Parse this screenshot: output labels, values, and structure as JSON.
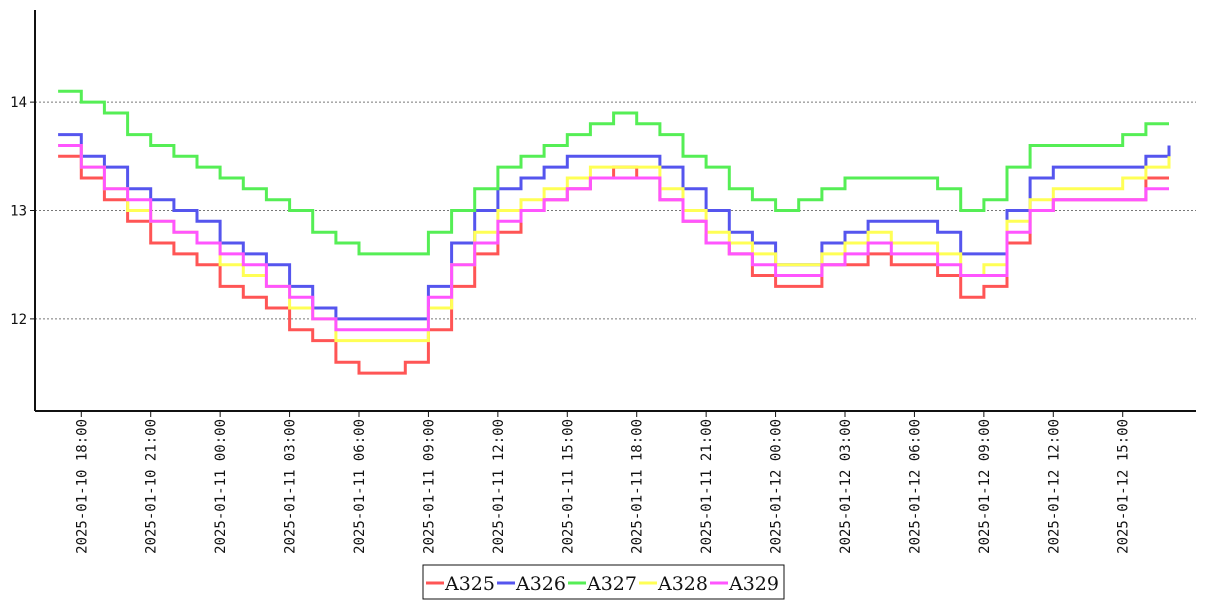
{
  "chart_data": {
    "type": "line",
    "title": "",
    "xlabel": "",
    "ylabel": "",
    "ylim": [
      11.15,
      14.85
    ],
    "xlim": [
      "2025-01-10 16:00",
      "2025-01-12 18:10"
    ],
    "grid": {
      "y": true,
      "x": false,
      "style": "dotted"
    },
    "legend_position": "bottom-center",
    "y_ticks": [
      12,
      13,
      14
    ],
    "y_tick_labels": [
      "12",
      "13",
      "14"
    ],
    "x_ticks": [
      "2025-01-10 18:00",
      "2025-01-10 21:00",
      "2025-01-11 00:00",
      "2025-01-11 03:00",
      "2025-01-11 06:00",
      "2025-01-11 09:00",
      "2025-01-11 12:00",
      "2025-01-11 15:00",
      "2025-01-11 18:00",
      "2025-01-11 21:00",
      "2025-01-12 00:00",
      "2025-01-12 03:00",
      "2025-01-12 06:00",
      "2025-01-12 09:00",
      "2025-01-12 12:00",
      "2025-01-12 15:00"
    ],
    "x_tick_labels": [
      "2025-01-10  18:00",
      "2025-01-10  21:00",
      "2025-01-11  00:00",
      "2025-01-11  03:00",
      "2025-01-11  06:00",
      "2025-01-11  09:00",
      "2025-01-11  12:00",
      "2025-01-11  15:00",
      "2025-01-11  18:00",
      "2025-01-11  21:00",
      "2025-01-12  00:00",
      "2025-01-12  03:00",
      "2025-01-12  06:00",
      "2025-01-12  09:00",
      "2025-01-12  12:00",
      "2025-01-12  15:00"
    ],
    "series": [
      {
        "name": "A325",
        "color": "#ff5555",
        "x": [
          "2025-01-10 17:00",
          "2025-01-10 18:00",
          "2025-01-10 19:00",
          "2025-01-10 20:00",
          "2025-01-10 21:00",
          "2025-01-10 22:00",
          "2025-01-10 23:00",
          "2025-01-11 00:00",
          "2025-01-11 01:00",
          "2025-01-11 02:00",
          "2025-01-11 03:00",
          "2025-01-11 04:00",
          "2025-01-11 05:00",
          "2025-01-11 06:00",
          "2025-01-11 07:00",
          "2025-01-11 08:00",
          "2025-01-11 09:00",
          "2025-01-11 10:00",
          "2025-01-11 11:00",
          "2025-01-11 12:00",
          "2025-01-11 13:00",
          "2025-01-11 14:00",
          "2025-01-11 15:00",
          "2025-01-11 16:00",
          "2025-01-11 17:00",
          "2025-01-11 18:00",
          "2025-01-11 19:00",
          "2025-01-11 20:00",
          "2025-01-11 21:00",
          "2025-01-11 22:00",
          "2025-01-11 23:00",
          "2025-01-12 00:00",
          "2025-01-12 01:00",
          "2025-01-12 02:00",
          "2025-01-12 03:00",
          "2025-01-12 04:00",
          "2025-01-12 05:00",
          "2025-01-12 06:00",
          "2025-01-12 07:00",
          "2025-01-12 08:00",
          "2025-01-12 09:00",
          "2025-01-12 10:00",
          "2025-01-12 11:00",
          "2025-01-12 12:00",
          "2025-01-12 13:00",
          "2025-01-12 14:00",
          "2025-01-12 15:00",
          "2025-01-12 16:00",
          "2025-01-12 17:00"
        ],
        "values": [
          13.5,
          13.3,
          13.1,
          12.9,
          12.7,
          12.6,
          12.5,
          12.3,
          12.2,
          12.1,
          11.9,
          11.8,
          11.6,
          11.5,
          11.5,
          11.6,
          11.9,
          12.3,
          12.6,
          12.8,
          13.0,
          13.1,
          13.2,
          13.3,
          13.4,
          13.3,
          13.1,
          12.9,
          12.7,
          12.6,
          12.4,
          12.3,
          12.3,
          12.5,
          12.5,
          12.6,
          12.5,
          12.5,
          12.4,
          12.2,
          12.3,
          12.7,
          13.0,
          13.1,
          13.1,
          13.1,
          13.1,
          13.3,
          13.3
        ]
      },
      {
        "name": "A326",
        "color": "#5555ee",
        "x": [
          "2025-01-10 17:00",
          "2025-01-10 18:00",
          "2025-01-10 19:00",
          "2025-01-10 20:00",
          "2025-01-10 21:00",
          "2025-01-10 22:00",
          "2025-01-10 23:00",
          "2025-01-11 00:00",
          "2025-01-11 01:00",
          "2025-01-11 02:00",
          "2025-01-11 03:00",
          "2025-01-11 04:00",
          "2025-01-11 05:00",
          "2025-01-11 06:00",
          "2025-01-11 07:00",
          "2025-01-11 08:00",
          "2025-01-11 09:00",
          "2025-01-11 10:00",
          "2025-01-11 11:00",
          "2025-01-11 12:00",
          "2025-01-11 13:00",
          "2025-01-11 14:00",
          "2025-01-11 15:00",
          "2025-01-11 16:00",
          "2025-01-11 17:00",
          "2025-01-11 18:00",
          "2025-01-11 19:00",
          "2025-01-11 20:00",
          "2025-01-11 21:00",
          "2025-01-11 22:00",
          "2025-01-11 23:00",
          "2025-01-12 00:00",
          "2025-01-12 01:00",
          "2025-01-12 02:00",
          "2025-01-12 03:00",
          "2025-01-12 04:00",
          "2025-01-12 05:00",
          "2025-01-12 06:00",
          "2025-01-12 07:00",
          "2025-01-12 08:00",
          "2025-01-12 09:00",
          "2025-01-12 10:00",
          "2025-01-12 11:00",
          "2025-01-12 12:00",
          "2025-01-12 13:00",
          "2025-01-12 14:00",
          "2025-01-12 15:00",
          "2025-01-12 16:00",
          "2025-01-12 17:00"
        ],
        "values": [
          13.7,
          13.5,
          13.4,
          13.2,
          13.1,
          13.0,
          12.9,
          12.7,
          12.6,
          12.5,
          12.3,
          12.1,
          12.0,
          12.0,
          12.0,
          12.0,
          12.3,
          12.7,
          13.0,
          13.2,
          13.3,
          13.4,
          13.5,
          13.5,
          13.5,
          13.5,
          13.4,
          13.2,
          13.0,
          12.8,
          12.7,
          12.5,
          12.5,
          12.7,
          12.8,
          12.9,
          12.9,
          12.9,
          12.8,
          12.6,
          12.6,
          13.0,
          13.3,
          13.4,
          13.4,
          13.4,
          13.4,
          13.5,
          13.6
        ]
      },
      {
        "name": "A327",
        "color": "#55ee55",
        "x": [
          "2025-01-10 17:00",
          "2025-01-10 18:00",
          "2025-01-10 19:00",
          "2025-01-10 20:00",
          "2025-01-10 21:00",
          "2025-01-10 22:00",
          "2025-01-10 23:00",
          "2025-01-11 00:00",
          "2025-01-11 01:00",
          "2025-01-11 02:00",
          "2025-01-11 03:00",
          "2025-01-11 04:00",
          "2025-01-11 05:00",
          "2025-01-11 06:00",
          "2025-01-11 07:00",
          "2025-01-11 08:00",
          "2025-01-11 09:00",
          "2025-01-11 10:00",
          "2025-01-11 11:00",
          "2025-01-11 12:00",
          "2025-01-11 13:00",
          "2025-01-11 14:00",
          "2025-01-11 15:00",
          "2025-01-11 16:00",
          "2025-01-11 17:00",
          "2025-01-11 18:00",
          "2025-01-11 19:00",
          "2025-01-11 20:00",
          "2025-01-11 21:00",
          "2025-01-11 22:00",
          "2025-01-11 23:00",
          "2025-01-12 00:00",
          "2025-01-12 01:00",
          "2025-01-12 02:00",
          "2025-01-12 03:00",
          "2025-01-12 04:00",
          "2025-01-12 05:00",
          "2025-01-12 06:00",
          "2025-01-12 07:00",
          "2025-01-12 08:00",
          "2025-01-12 09:00",
          "2025-01-12 10:00",
          "2025-01-12 11:00",
          "2025-01-12 12:00",
          "2025-01-12 13:00",
          "2025-01-12 14:00",
          "2025-01-12 15:00",
          "2025-01-12 16:00",
          "2025-01-12 17:00"
        ],
        "values": [
          14.1,
          14.0,
          13.9,
          13.7,
          13.6,
          13.5,
          13.4,
          13.3,
          13.2,
          13.1,
          13.0,
          12.8,
          12.7,
          12.6,
          12.6,
          12.6,
          12.8,
          13.0,
          13.2,
          13.4,
          13.5,
          13.6,
          13.7,
          13.8,
          13.9,
          13.8,
          13.7,
          13.5,
          13.4,
          13.2,
          13.1,
          13.0,
          13.1,
          13.2,
          13.3,
          13.3,
          13.3,
          13.3,
          13.2,
          13.0,
          13.1,
          13.4,
          13.6,
          13.6,
          13.6,
          13.6,
          13.7,
          13.8,
          13.8
        ]
      },
      {
        "name": "A328",
        "color": "#ffff55",
        "x": [
          "2025-01-10 17:00",
          "2025-01-10 18:00",
          "2025-01-10 19:00",
          "2025-01-10 20:00",
          "2025-01-10 21:00",
          "2025-01-10 22:00",
          "2025-01-10 23:00",
          "2025-01-11 00:00",
          "2025-01-11 01:00",
          "2025-01-11 02:00",
          "2025-01-11 03:00",
          "2025-01-11 04:00",
          "2025-01-11 05:00",
          "2025-01-11 06:00",
          "2025-01-11 07:00",
          "2025-01-11 08:00",
          "2025-01-11 09:00",
          "2025-01-11 10:00",
          "2025-01-11 11:00",
          "2025-01-11 12:00",
          "2025-01-11 13:00",
          "2025-01-11 14:00",
          "2025-01-11 15:00",
          "2025-01-11 16:00",
          "2025-01-11 17:00",
          "2025-01-11 18:00",
          "2025-01-11 19:00",
          "2025-01-11 20:00",
          "2025-01-11 21:00",
          "2025-01-11 22:00",
          "2025-01-11 23:00",
          "2025-01-12 00:00",
          "2025-01-12 01:00",
          "2025-01-12 02:00",
          "2025-01-12 03:00",
          "2025-01-12 04:00",
          "2025-01-12 05:00",
          "2025-01-12 06:00",
          "2025-01-12 07:00",
          "2025-01-12 08:00",
          "2025-01-12 09:00",
          "2025-01-12 10:00",
          "2025-01-12 11:00",
          "2025-01-12 12:00",
          "2025-01-12 13:00",
          "2025-01-12 14:00",
          "2025-01-12 15:00",
          "2025-01-12 16:00",
          "2025-01-12 17:00"
        ],
        "values": [
          13.6,
          13.4,
          13.2,
          13.0,
          12.9,
          12.8,
          12.7,
          12.5,
          12.4,
          12.3,
          12.1,
          12.0,
          11.8,
          11.8,
          11.8,
          11.8,
          12.1,
          12.5,
          12.8,
          13.0,
          13.1,
          13.2,
          13.3,
          13.4,
          13.4,
          13.4,
          13.2,
          13.0,
          12.8,
          12.7,
          12.6,
          12.5,
          12.5,
          12.6,
          12.7,
          12.8,
          12.7,
          12.7,
          12.6,
          12.4,
          12.5,
          12.9,
          13.1,
          13.2,
          13.2,
          13.2,
          13.3,
          13.4,
          13.5
        ]
      },
      {
        "name": "A329",
        "color": "#ff55ff",
        "x": [
          "2025-01-10 17:00",
          "2025-01-10 18:00",
          "2025-01-10 19:00",
          "2025-01-10 20:00",
          "2025-01-10 21:00",
          "2025-01-10 22:00",
          "2025-01-10 23:00",
          "2025-01-11 00:00",
          "2025-01-11 01:00",
          "2025-01-11 02:00",
          "2025-01-11 03:00",
          "2025-01-11 04:00",
          "2025-01-11 05:00",
          "2025-01-11 06:00",
          "2025-01-11 07:00",
          "2025-01-11 08:00",
          "2025-01-11 09:00",
          "2025-01-11 10:00",
          "2025-01-11 11:00",
          "2025-01-11 12:00",
          "2025-01-11 13:00",
          "2025-01-11 14:00",
          "2025-01-11 15:00",
          "2025-01-11 16:00",
          "2025-01-11 17:00",
          "2025-01-11 18:00",
          "2025-01-11 19:00",
          "2025-01-11 20:00",
          "2025-01-11 21:00",
          "2025-01-11 22:00",
          "2025-01-11 23:00",
          "2025-01-12 00:00",
          "2025-01-12 01:00",
          "2025-01-12 02:00",
          "2025-01-12 03:00",
          "2025-01-12 04:00",
          "2025-01-12 05:00",
          "2025-01-12 06:00",
          "2025-01-12 07:00",
          "2025-01-12 08:00",
          "2025-01-12 09:00",
          "2025-01-12 10:00",
          "2025-01-12 11:00",
          "2025-01-12 12:00",
          "2025-01-12 13:00",
          "2025-01-12 14:00",
          "2025-01-12 15:00",
          "2025-01-12 16:00",
          "2025-01-12 17:00"
        ],
        "values": [
          13.6,
          13.4,
          13.2,
          13.1,
          12.9,
          12.8,
          12.7,
          12.6,
          12.5,
          12.3,
          12.2,
          12.0,
          11.9,
          11.9,
          11.9,
          11.9,
          12.2,
          12.5,
          12.7,
          12.9,
          13.0,
          13.1,
          13.2,
          13.3,
          13.3,
          13.3,
          13.1,
          12.9,
          12.7,
          12.6,
          12.5,
          12.4,
          12.4,
          12.5,
          12.6,
          12.7,
          12.6,
          12.6,
          12.5,
          12.4,
          12.4,
          12.8,
          13.0,
          13.1,
          13.1,
          13.1,
          13.1,
          13.2,
          13.2
        ]
      }
    ]
  }
}
